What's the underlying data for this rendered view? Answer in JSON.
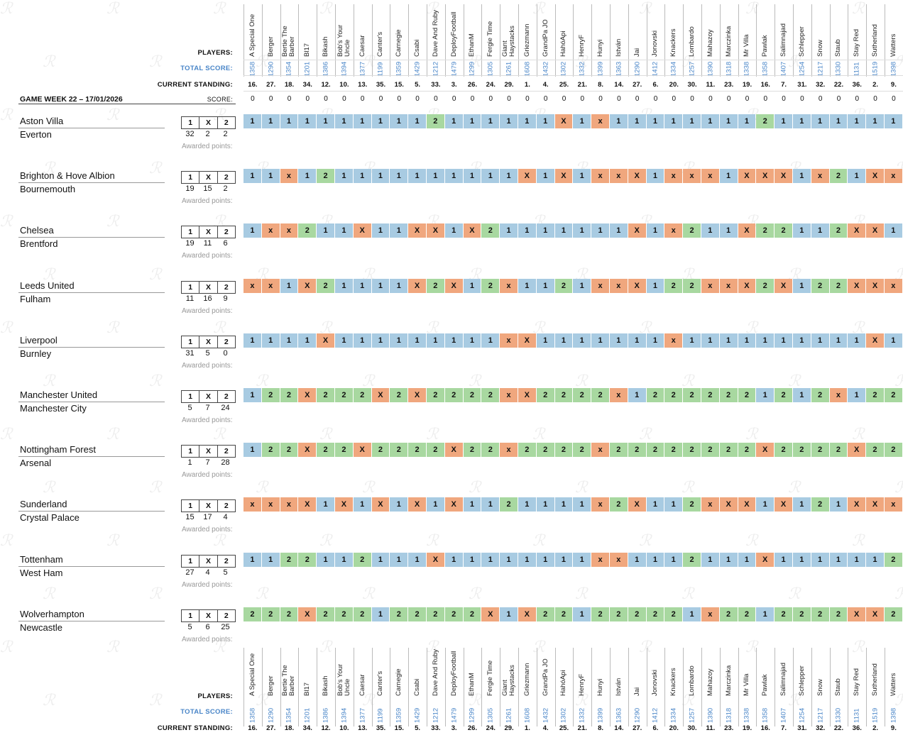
{
  "labels": {
    "players": "PLAYERS:",
    "total_score": "TOTAL SCORE:",
    "current_standing": "CURRENT STANDING:",
    "score": "SCORE:",
    "game_week": "GAME WEEK 22 – 17/01/2026",
    "awarded": "Awarded points:"
  },
  "columns": {
    "names": [
      "A Special One",
      "Berger",
      "Bertie The Barber",
      "Bl17",
      "Bikash",
      "Bob's Your Uncle",
      "Caesar",
      "Canter's",
      "Carnegie",
      "Csabi",
      "Dave And Ruby",
      "DeployFootball",
      "EthanM",
      "Fergie Time",
      "Giant Haystacks",
      "Griezmann",
      "GrandPa JO",
      "HahóApi",
      "HenryF",
      "Hunyi",
      "István",
      "Jai",
      "Jonovski",
      "Knackers",
      "Lombardo",
      "Mahazoy",
      "Marczinka",
      "Mr Villa",
      "Pawlak",
      "Salimnajad",
      "Schlepper",
      "Snow",
      "Staub",
      "Stay Red",
      "Sutherland",
      "Watters"
    ],
    "total": [
      "1358",
      "1290",
      "1354",
      "1201",
      "1386",
      "1394",
      "1377",
      "1199",
      "1359",
      "1429",
      "1212",
      "1479",
      "1299",
      "1305",
      "1261",
      "1608",
      "1432",
      "1302",
      "1332",
      "1399",
      "1363",
      "1290",
      "1412",
      "1334",
      "1257",
      "1390",
      "1318",
      "1338",
      "1358",
      "1407",
      "1254",
      "1217",
      "1330",
      "1131",
      "1519",
      "1398"
    ],
    "standing": [
      "16.",
      "27.",
      "18.",
      "34.",
      "12.",
      "10.",
      "13.",
      "35.",
      "15.",
      "5.",
      "33.",
      "3.",
      "26.",
      "24.",
      "29.",
      "1.",
      "4.",
      "25.",
      "21.",
      "8.",
      "14.",
      "27.",
      "6.",
      "20.",
      "30.",
      "11.",
      "23.",
      "19.",
      "16.",
      "7.",
      "31.",
      "32.",
      "22.",
      "36.",
      "2.",
      "9."
    ],
    "score": [
      "0",
      "0",
      "0",
      "0",
      "0",
      "0",
      "0",
      "0",
      "0",
      "0",
      "0",
      "0",
      "0",
      "0",
      "0",
      "0",
      "0",
      "0",
      "0",
      "0",
      "0",
      "0",
      "0",
      "0",
      "0",
      "0",
      "0",
      "0",
      "0",
      "0",
      "0",
      "0",
      "0",
      "0",
      "0",
      "0"
    ]
  },
  "outcomes": [
    "1",
    "X",
    "2"
  ],
  "matches": [
    {
      "home": "Aston Villa",
      "away": "Everton",
      "counts": [
        "32",
        "2",
        "2"
      ],
      "picks": [
        "1",
        "1",
        "1",
        "1",
        "1",
        "1",
        "1",
        "1",
        "1",
        "1",
        "2",
        "1",
        "1",
        "1",
        "1",
        "1",
        "1",
        "X",
        "1",
        "x",
        "1",
        "1",
        "1",
        "1",
        "1",
        "1",
        "1",
        "1",
        "2",
        "1",
        "1",
        "1",
        "1",
        "1",
        "1",
        "1"
      ]
    },
    {
      "home": "Brighton & Hove Albion",
      "away": "Bournemouth",
      "counts": [
        "19",
        "15",
        "2"
      ],
      "picks": [
        "1",
        "1",
        "x",
        "1",
        "2",
        "1",
        "1",
        "1",
        "1",
        "1",
        "1",
        "1",
        "1",
        "1",
        "1",
        "X",
        "1",
        "X",
        "1",
        "x",
        "x",
        "X",
        "1",
        "x",
        "x",
        "x",
        "1",
        "X",
        "X",
        "X",
        "1",
        "x",
        "2",
        "1",
        "X",
        "x"
      ]
    },
    {
      "home": "Chelsea",
      "away": "Brentford",
      "counts": [
        "19",
        "11",
        "6"
      ],
      "picks": [
        "1",
        "x",
        "x",
        "2",
        "1",
        "1",
        "X",
        "1",
        "1",
        "X",
        "X",
        "1",
        "X",
        "2",
        "1",
        "1",
        "1",
        "1",
        "1",
        "1",
        "1",
        "X",
        "1",
        "x",
        "2",
        "1",
        "1",
        "X",
        "2",
        "2",
        "1",
        "1",
        "2",
        "X",
        "X",
        "1"
      ]
    },
    {
      "home": "Leeds United",
      "away": "Fulham",
      "counts": [
        "11",
        "16",
        "9"
      ],
      "picks": [
        "x",
        "x",
        "1",
        "X",
        "2",
        "1",
        "1",
        "1",
        "1",
        "X",
        "2",
        "X",
        "1",
        "2",
        "x",
        "1",
        "1",
        "2",
        "1",
        "x",
        "x",
        "X",
        "1",
        "2",
        "2",
        "x",
        "x",
        "X",
        "2",
        "X",
        "1",
        "2",
        "2",
        "X",
        "X",
        "x"
      ]
    },
    {
      "home": "Liverpool",
      "away": "Burnley",
      "counts": [
        "31",
        "5",
        "0"
      ],
      "picks": [
        "1",
        "1",
        "1",
        "1",
        "X",
        "1",
        "1",
        "1",
        "1",
        "1",
        "1",
        "1",
        "1",
        "1",
        "x",
        "X",
        "1",
        "1",
        "1",
        "1",
        "1",
        "1",
        "1",
        "x",
        "1",
        "1",
        "1",
        "1",
        "1",
        "1",
        "1",
        "1",
        "1",
        "1",
        "X",
        "1"
      ]
    },
    {
      "home": "Manchester United",
      "away": "Manchester City",
      "counts": [
        "5",
        "7",
        "24"
      ],
      "picks": [
        "1",
        "2",
        "2",
        "X",
        "2",
        "2",
        "2",
        "X",
        "2",
        "X",
        "2",
        "2",
        "2",
        "2",
        "x",
        "X",
        "2",
        "2",
        "2",
        "2",
        "x",
        "1",
        "2",
        "2",
        "2",
        "2",
        "2",
        "2",
        "1",
        "2",
        "1",
        "2",
        "x",
        "1",
        "2",
        "2"
      ]
    },
    {
      "home": "Nottingham Forest",
      "away": "Arsenal",
      "counts": [
        "1",
        "7",
        "28"
      ],
      "picks": [
        "1",
        "2",
        "2",
        "X",
        "2",
        "2",
        "X",
        "2",
        "2",
        "2",
        "2",
        "X",
        "2",
        "2",
        "x",
        "2",
        "2",
        "2",
        "2",
        "x",
        "2",
        "2",
        "2",
        "2",
        "2",
        "2",
        "2",
        "2",
        "X",
        "2",
        "2",
        "2",
        "2",
        "X",
        "2",
        "2"
      ]
    },
    {
      "home": "Sunderland",
      "away": "Crystal Palace",
      "counts": [
        "15",
        "17",
        "4"
      ],
      "picks": [
        "x",
        "x",
        "x",
        "X",
        "1",
        "X",
        "1",
        "X",
        "1",
        "X",
        "1",
        "X",
        "1",
        "1",
        "2",
        "1",
        "1",
        "1",
        "1",
        "x",
        "2",
        "X",
        "1",
        "1",
        "2",
        "x",
        "X",
        "X",
        "1",
        "X",
        "1",
        "2",
        "1",
        "X",
        "X",
        "x"
      ]
    },
    {
      "home": "Tottenham",
      "away": "West Ham",
      "counts": [
        "27",
        "4",
        "5"
      ],
      "picks": [
        "1",
        "1",
        "2",
        "2",
        "1",
        "1",
        "2",
        "1",
        "1",
        "1",
        "X",
        "1",
        "1",
        "1",
        "1",
        "1",
        "1",
        "1",
        "1",
        "x",
        "x",
        "1",
        "1",
        "1",
        "2",
        "1",
        "1",
        "1",
        "X",
        "1",
        "1",
        "1",
        "1",
        "1",
        "1",
        "2"
      ]
    },
    {
      "home": "Wolverhampton",
      "away": "Newcastle",
      "counts": [
        "5",
        "6",
        "25"
      ],
      "picks": [
        "2",
        "2",
        "2",
        "X",
        "2",
        "2",
        "2",
        "1",
        "2",
        "2",
        "2",
        "2",
        "2",
        "X",
        "1",
        "X",
        "2",
        "2",
        "1",
        "2",
        "2",
        "2",
        "2",
        "2",
        "1",
        "x",
        "2",
        "2",
        "1",
        "2",
        "2",
        "2",
        "2",
        "X",
        "X",
        "2"
      ]
    }
  ],
  "colors": {
    "pick_1": "#a8cbe2",
    "pick_X": "#f0a77e",
    "pick_2": "#a8d8a0",
    "total_score_text": "#4a86c8"
  }
}
